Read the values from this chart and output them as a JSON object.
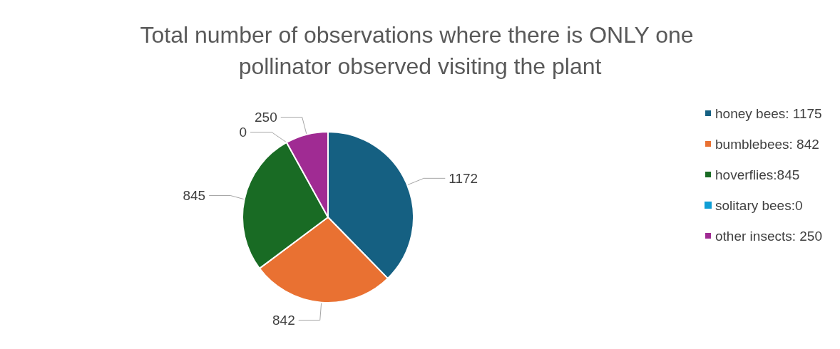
{
  "chart_data": {
    "type": "pie",
    "title": "Total number of observations where there is ONLY one pollinator observed visiting the plant",
    "categories": [
      "honey bees: 1175",
      "bumblebees: 842",
      "hoverflies:845",
      "solitary bees:0",
      "other insects: 250"
    ],
    "values": [
      1172,
      842,
      845,
      0,
      250
    ],
    "colors": [
      "#156082",
      "#e97132",
      "#196b24",
      "#0f9ed5",
      "#a02b93"
    ],
    "value_labels": [
      "1172",
      "842",
      "845",
      "0",
      "250"
    ],
    "legend": "right"
  }
}
